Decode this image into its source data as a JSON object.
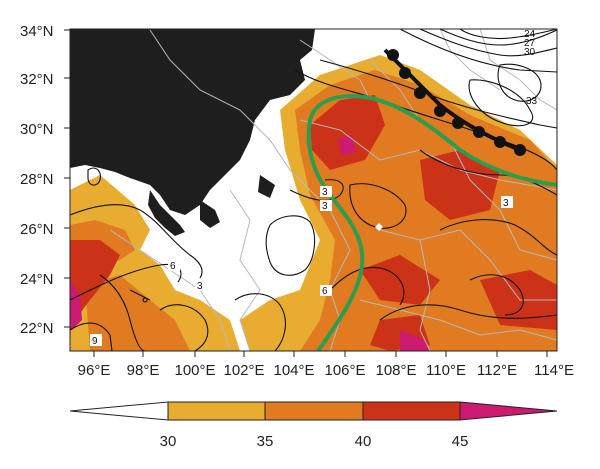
{
  "map": {
    "lat_labels": [
      "22°N",
      "24°N",
      "26°N",
      "28°N",
      "30°N",
      "32°N",
      "34°N"
    ],
    "lon_labels": [
      "96°E",
      "98°E",
      "100°E",
      "102°E",
      "104°E",
      "106°E",
      "108°E",
      "110°E",
      "112°E",
      "114°E"
    ],
    "contour_labels": [
      "3",
      "3",
      "3",
      "3",
      "6",
      "6",
      "9",
      "24",
      "27",
      "30",
      "33"
    ],
    "shading_colors": {
      "c30_35": "#e8ad30",
      "c35_40": "#e07b22",
      "c40_45": "#cc3218",
      "c45plus": "#cc1a70",
      "terrain": "#1e1e1e",
      "jet": "#2a9e4e",
      "front": "#111111"
    }
  },
  "colorbar": {
    "ticks": [
      "30",
      "35",
      "40",
      "45"
    ],
    "colors": [
      "#ffffff",
      "#e8ad30",
      "#e07b22",
      "#cc3218",
      "#cc1a70"
    ]
  }
}
